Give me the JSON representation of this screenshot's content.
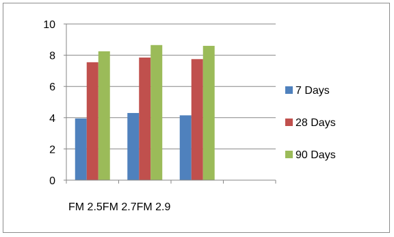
{
  "chart_data": {
    "type": "bar",
    "categories": [
      "FM 2.5",
      "FM 2.7",
      "FM 2.9",
      ""
    ],
    "series": [
      {
        "name": "7 Days",
        "color": "#4f81bd",
        "values": [
          3.95,
          4.3,
          4.15,
          null
        ]
      },
      {
        "name": "28 Days",
        "color": "#c0504d",
        "values": [
          7.55,
          7.85,
          7.75,
          null
        ]
      },
      {
        "name": "90 Days",
        "color": "#9bbb59",
        "values": [
          8.25,
          8.65,
          8.6,
          null
        ]
      }
    ],
    "title": "",
    "xlabel": "",
    "ylabel": "",
    "ylim": [
      0,
      10
    ],
    "yticks": [
      0,
      2,
      4,
      6,
      8,
      10
    ],
    "ytick_labels": [
      "0",
      "2",
      "4",
      "6",
      "8",
      "10"
    ],
    "grid": "horizontal",
    "legend_position": "right"
  }
}
